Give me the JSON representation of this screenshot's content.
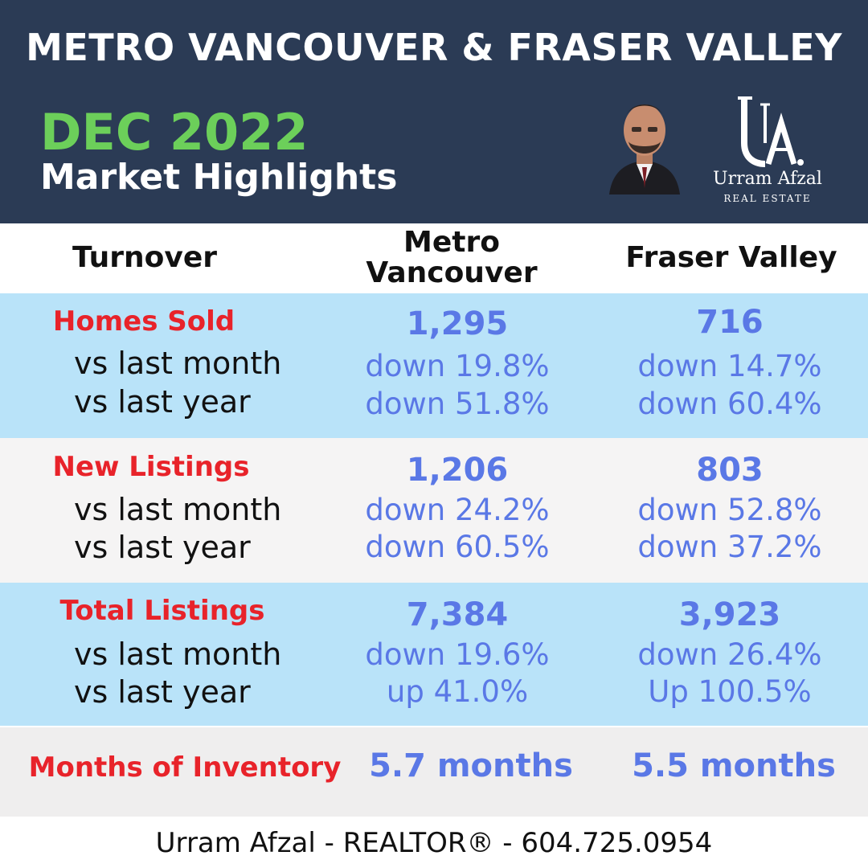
{
  "header": {
    "region_title": "METRO VANCOUVER & FRASER VALLEY",
    "period": "DEC 2022",
    "subtitle": "Market Highlights",
    "logo": {
      "monogram": "UA.",
      "name": "Urram Afzal",
      "sub": "REAL ESTATE"
    }
  },
  "columns": {
    "label_col": "Turnover",
    "metro": "Metro Vancouver",
    "fraser": "Fraser Valley"
  },
  "row_labels": {
    "month": "vs last month",
    "year": "vs last year"
  },
  "metrics": [
    {
      "title": "Homes Sold",
      "metro": {
        "value": "1,295",
        "month": "down 19.8%",
        "year": "down 51.8%"
      },
      "fraser": {
        "value": "716",
        "month": "down 14.7%",
        "year": "down 60.4%"
      }
    },
    {
      "title": "New Listings",
      "metro": {
        "value": "1,206",
        "month": "down 24.2%",
        "year": "down 60.5%"
      },
      "fraser": {
        "value": "803",
        "month": "down 52.8%",
        "year": "down 37.2%"
      }
    },
    {
      "title": "Total Listings",
      "metro": {
        "value": "7,384",
        "month": "down 19.6%",
        "year": "up 41.0%"
      },
      "fraser": {
        "value": "3,923",
        "month": "down 26.4%",
        "year": "Up 100.5%"
      }
    }
  ],
  "inventory": {
    "title": "Months of Inventory",
    "metro": "5.7 months",
    "fraser": "5.5 months"
  },
  "footer": {
    "contact": "Urram Afzal - REALTOR® - 604.725.0954"
  },
  "colors": {
    "header_bg": "#2b3b55",
    "period_green": "#6ccf5a",
    "band_blue": "#b9e3f9",
    "band_grey": "#f5f4f4",
    "label_red": "#e8232a",
    "value_blue": "#5a78e6"
  }
}
